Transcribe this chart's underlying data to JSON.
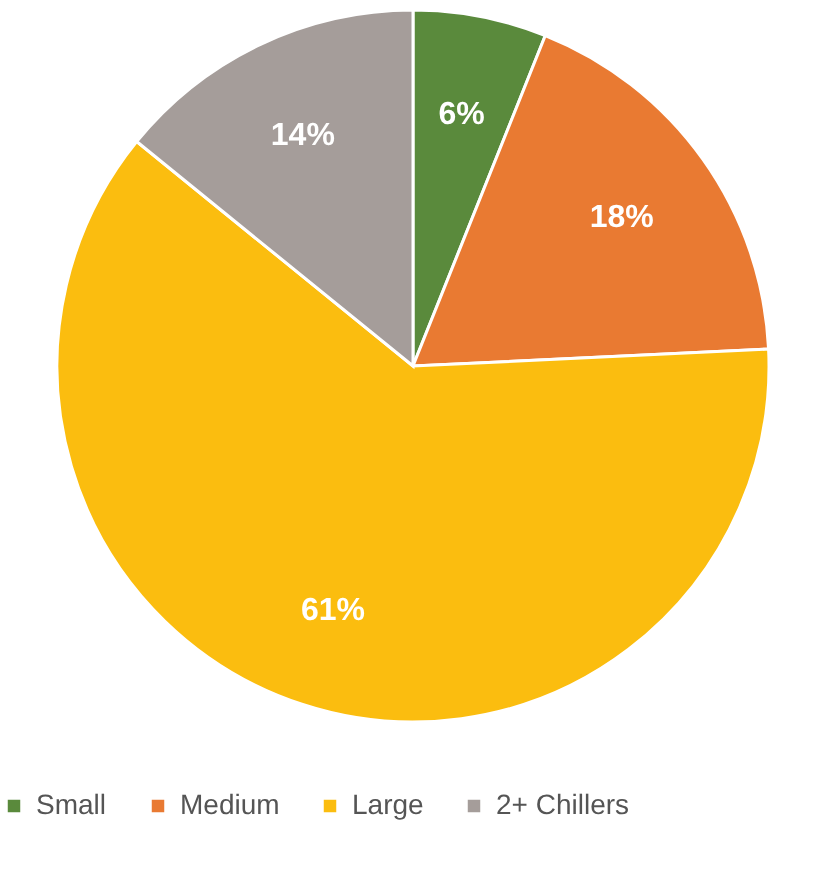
{
  "chart_data": {
    "type": "pie",
    "categories": [
      "Small",
      "Medium",
      "Large",
      "2+ Chillers"
    ],
    "values": [
      6,
      18,
      61,
      14
    ],
    "colors": [
      "#5a8a3c",
      "#e97a32",
      "#fbbd0f",
      "#a59d9a"
    ],
    "value_labels": [
      "6%",
      "18%",
      "61%",
      "14%"
    ],
    "legend": "bottom"
  }
}
